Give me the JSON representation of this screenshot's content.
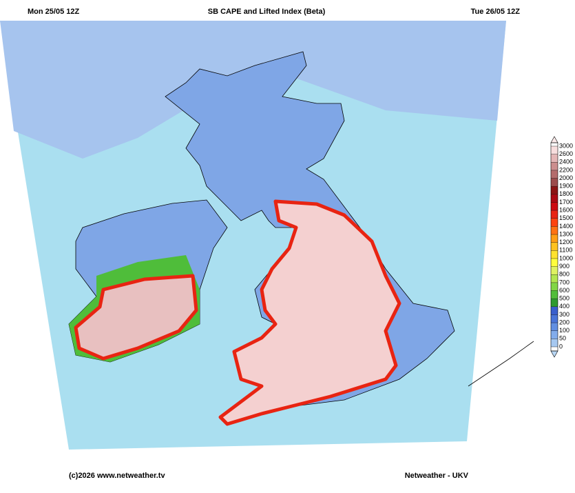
{
  "header": {
    "left": "Mon 25/05 12Z",
    "title": "SB CAPE and Lifted Index (Beta)",
    "right": "Tue 26/05 12Z"
  },
  "colorbar": {
    "ticks": [
      0,
      50,
      100,
      200,
      300,
      400,
      500,
      600,
      700,
      800,
      900,
      1000,
      1100,
      1200,
      1300,
      1400,
      1500,
      1600,
      1700,
      1800,
      1900,
      2000,
      2200,
      2400,
      2600,
      3000
    ],
    "band_colors": [
      "#a6c8f0",
      "#82aceb",
      "#628fe2",
      "#4a74d8",
      "#3a5fcc",
      "#2f9a2f",
      "#52bd3a",
      "#82d646",
      "#b3e650",
      "#dff262",
      "#ffff3c",
      "#ffe22e",
      "#ffc220",
      "#ff9e14",
      "#ff7212",
      "#ff4410",
      "#e82412",
      "#cc0a12",
      "#ab0a14",
      "#8c1414",
      "#9c4c4c",
      "#b46c6c",
      "#cc8e8e",
      "#e4b6b6",
      "#f8dede"
    ]
  },
  "footer": {
    "left": "(c)2026 www.netweather.tv",
    "right": "Netweather - UKV"
  }
}
